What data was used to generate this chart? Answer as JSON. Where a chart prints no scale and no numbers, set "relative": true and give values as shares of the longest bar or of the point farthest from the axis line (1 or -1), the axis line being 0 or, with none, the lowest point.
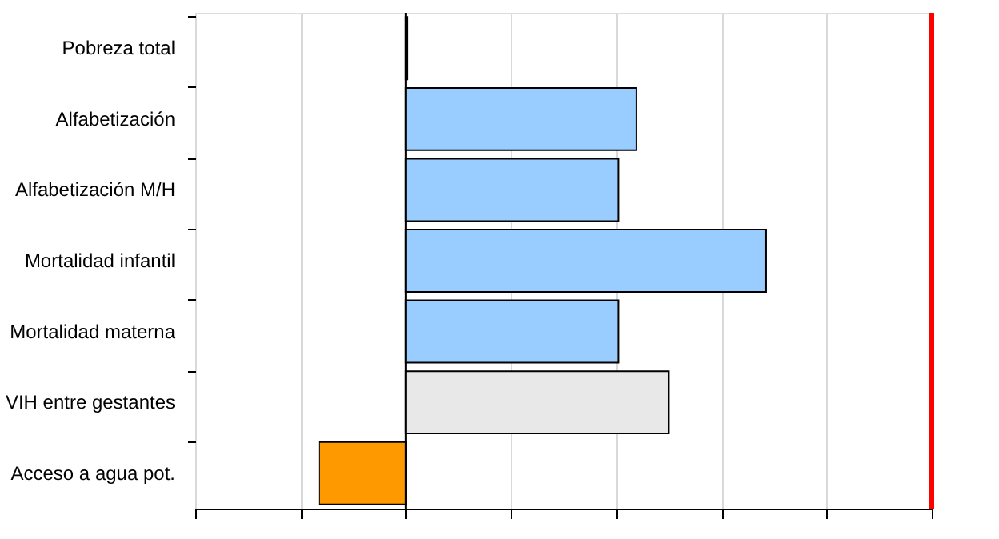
{
  "chart_data": {
    "type": "bar",
    "orientation": "horizontal",
    "relative": true,
    "categories": [
      "Pobreza total",
      "Alfabetización",
      "Alfabetización M/H",
      "Mortalidad infantil",
      "Mortalidad materna",
      "VIH entre gestantes",
      "Acceso a agua pot."
    ],
    "values": [
      0.005,
      0.64,
      0.59,
      1,
      0.59,
      0.73,
      -0.24
    ],
    "colors": [
      "#000000",
      "#99ccff",
      "#99ccff",
      "#99ccff",
      "#99ccff",
      "#e8e8e8",
      "#ff9900"
    ],
    "ref_lines": [
      {
        "axis": "x",
        "value": 1.46,
        "color": "#ff0000"
      }
    ],
    "grid": "x",
    "tick_labels": "y"
  }
}
